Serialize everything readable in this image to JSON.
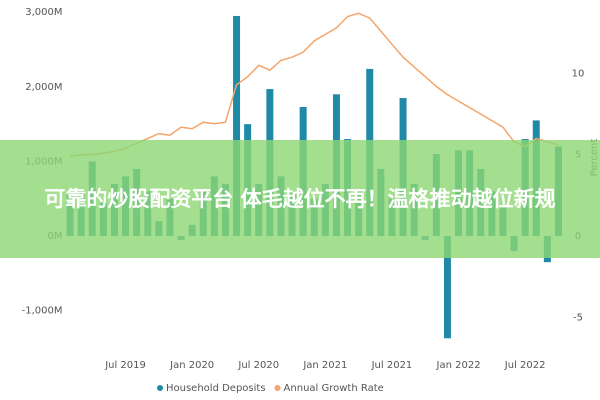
{
  "chart_data": {
    "type": "bar",
    "categories": [
      null,
      null,
      null,
      null,
      null,
      "Jul 2019",
      null,
      null,
      null,
      null,
      null,
      "Jan 2020",
      null,
      null,
      null,
      null,
      null,
      "Jul 2020",
      null,
      null,
      null,
      null,
      null,
      "Jan 2021",
      null,
      null,
      null,
      null,
      null,
      "Jul 2021",
      null,
      null,
      null,
      null,
      null,
      "Jan 2022",
      null,
      null,
      null,
      null,
      null,
      "Jul 2022",
      null,
      null,
      null
    ],
    "series": [
      {
        "name": "Household Deposits",
        "type": "bar",
        "color": "#1e8aa6",
        "values": [
          550,
          600,
          1000,
          450,
          700,
          800,
          900,
          600,
          200,
          500,
          -50,
          150,
          600,
          800,
          700,
          2950,
          1500,
          700,
          1970,
          800,
          600,
          1730,
          500,
          700,
          1900,
          1300,
          600,
          2240,
          900,
          500,
          1850,
          700,
          -50,
          1100,
          -1370,
          1150,
          1150,
          900,
          600,
          400,
          -200,
          1300,
          1550,
          -350,
          1200
        ]
      },
      {
        "name": "Annual Growth Rate",
        "type": "line",
        "axis": "y2",
        "color": "#f4a56a",
        "values": [
          4.9,
          5.0,
          5.0,
          5.1,
          5.2,
          5.4,
          5.7,
          6.0,
          6.3,
          6.2,
          6.7,
          6.6,
          7.0,
          6.9,
          7.0,
          9.3,
          9.8,
          10.5,
          10.2,
          10.8,
          11.0,
          11.3,
          12.0,
          12.4,
          12.8,
          13.5,
          13.7,
          13.4,
          12.6,
          11.8,
          11.0,
          10.4,
          9.8,
          9.2,
          8.7,
          8.3,
          7.9,
          7.5,
          7.1,
          6.7,
          5.8,
          5.5,
          6.0,
          5.8,
          5.6
        ]
      }
    ],
    "ylim": [
      -1460,
      3030
    ],
    "yticks": [
      {
        "value": -1000,
        "label": "-1,000M"
      },
      {
        "value": 0,
        "label": "0M"
      },
      {
        "value": 1000,
        "label": "1,000M"
      },
      {
        "value": 2000,
        "label": "2,000M"
      },
      {
        "value": 3000,
        "label": "3,000M"
      }
    ],
    "y2lim": [
      -6.7,
      13.9
    ],
    "y2ticks": [
      -5,
      0,
      5,
      10
    ],
    "y2label": "Percent",
    "grid": false
  },
  "banner": {
    "text": "可靠的炒股配资平台 体毛越位不再！温格推动越位新规"
  }
}
